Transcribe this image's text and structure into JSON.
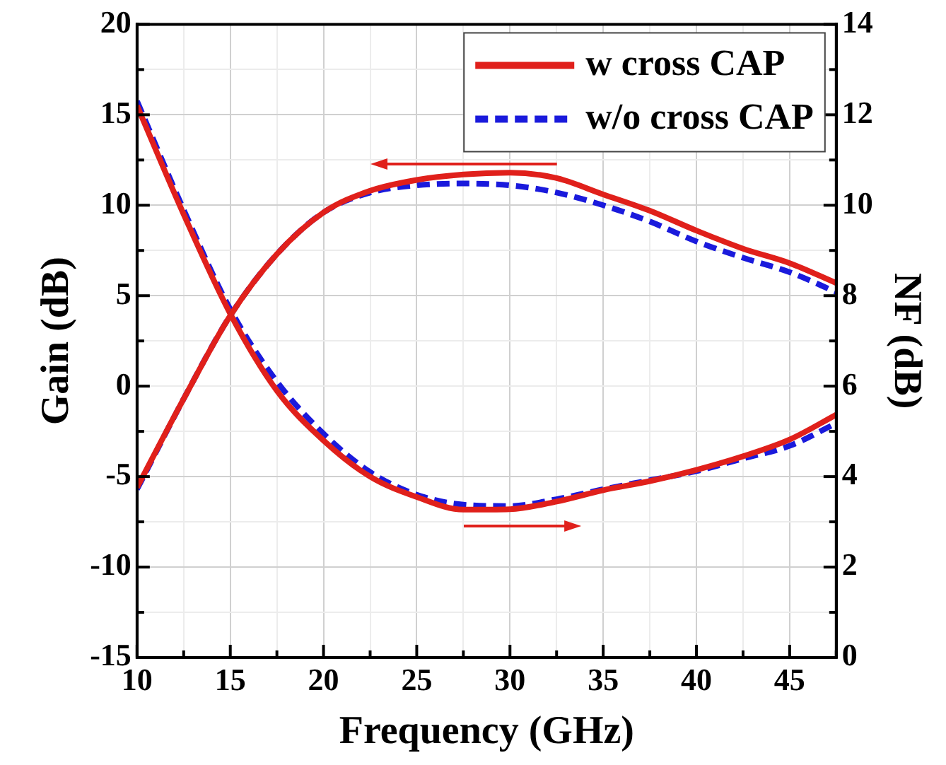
{
  "chart_data": {
    "type": "line",
    "xlabel": "Frequency (GHz)",
    "ylabel": "Gain (dB)",
    "y2label": "NF (dB)",
    "xlim": [
      10,
      47.5
    ],
    "xticks": [
      10,
      {
        "value": 12.5,
        "label": null
      },
      15,
      {
        "value": 17.5,
        "label": null
      },
      20,
      {
        "value": 22.5,
        "label": null
      },
      25,
      {
        "value": 27.5,
        "label": null
      },
      30,
      {
        "value": 32.5,
        "label": null
      },
      35,
      {
        "value": 37.5,
        "label": null
      },
      40,
      {
        "value": 42.5,
        "label": null
      },
      45,
      {
        "value": 47.5,
        "label": null
      }
    ],
    "ylim": [
      -15,
      20
    ],
    "yticks": [
      -15,
      {
        "value": -12.5,
        "label": null
      },
      -10,
      {
        "value": -7.5,
        "label": null
      },
      -5,
      {
        "value": -2.5,
        "label": null
      },
      0,
      {
        "value": 2.5,
        "label": null
      },
      5,
      {
        "value": 7.5,
        "label": null
      },
      10,
      {
        "value": 12.5,
        "label": null
      },
      15,
      {
        "value": 17.5,
        "label": null
      },
      20
    ],
    "y2lim": [
      0,
      14
    ],
    "y2ticks": [
      0,
      {
        "value": 1,
        "label": null
      },
      2,
      {
        "value": 3,
        "label": null
      },
      4,
      {
        "value": 5,
        "label": null
      },
      6,
      {
        "value": 7,
        "label": null
      },
      8,
      {
        "value": 9,
        "label": null
      },
      10,
      {
        "value": 11,
        "label": null
      },
      12,
      {
        "value": 13,
        "label": null
      },
      14
    ],
    "x": [
      10,
      12.5,
      15,
      17.5,
      20,
      22.5,
      25,
      27.5,
      30,
      32.5,
      35,
      37.5,
      40,
      42.5,
      45,
      47.5
    ],
    "grid": true,
    "legend": "top right",
    "marker": "none",
    "series": [
      {
        "name": "w cross CAP",
        "color": "#e0201b",
        "line_style": "solid",
        "values": [
          -5.6,
          -0.7,
          3.9,
          7.3,
          9.6,
          10.8,
          11.4,
          11.7,
          11.8,
          11.5,
          10.6,
          9.7,
          8.6,
          7.6,
          6.8,
          5.7
        ]
      },
      {
        "name": "w/o cross CAP",
        "color": "#1a1adc",
        "line_style": "dashed",
        "values": [
          -5.7,
          -0.7,
          3.9,
          7.3,
          9.6,
          10.7,
          11.1,
          11.2,
          11.1,
          10.7,
          10.0,
          9.1,
          8.0,
          7.1,
          6.3,
          5.2
        ]
      },
      {
        "color": "#e0201b",
        "axis": "y2",
        "line_style": "solid",
        "values": [
          12.2,
          9.8,
          7.6,
          5.9,
          4.8,
          4.0,
          3.55,
          3.27,
          3.28,
          3.45,
          3.7,
          3.9,
          4.15,
          4.45,
          4.82,
          5.37
        ]
      },
      {
        "color": "#1a1adc",
        "axis": "y2",
        "line_style": "dashed",
        "values": [
          12.3,
          9.9,
          7.7,
          6.1,
          4.95,
          4.1,
          3.6,
          3.38,
          3.35,
          3.5,
          3.72,
          3.92,
          4.12,
          4.4,
          4.68,
          5.18
        ]
      }
    ]
  }
}
